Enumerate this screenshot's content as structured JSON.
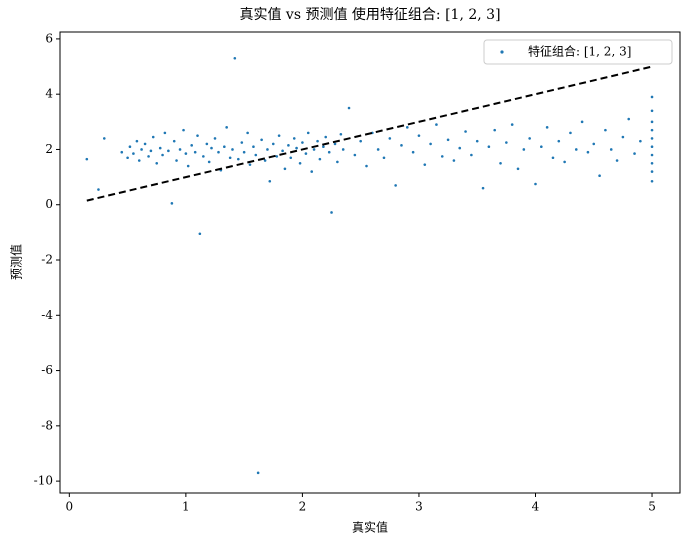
{
  "chart_data": {
    "type": "scatter",
    "title": "真实值 vs 预测值 使用特征组合: [1, 2, 3]",
    "x_label": "真实值",
    "y_label": "预测值",
    "xlim": [
      -0.08,
      5.24
    ],
    "ylim": [
      -10.43,
      6.25
    ],
    "xticks": [
      0,
      1,
      2,
      3,
      4,
      5
    ],
    "yticks": [
      -10,
      -8,
      -6,
      -4,
      -2,
      0,
      2,
      4,
      6
    ],
    "legend": "upper right",
    "grid": false,
    "reference_line": {
      "x": [
        0.15,
        5
      ],
      "y": [
        0.15,
        5
      ],
      "color": "#000000",
      "dashed": true
    },
    "series": [
      {
        "name": "特征组合: [1, 2, 3]",
        "color": "#1f77b4",
        "x": [
          0.15,
          0.25,
          0.3,
          0.45,
          0.5,
          0.52,
          0.55,
          0.58,
          0.6,
          0.62,
          0.65,
          0.68,
          0.7,
          0.72,
          0.75,
          0.78,
          0.8,
          0.82,
          0.85,
          0.88,
          0.9,
          0.92,
          0.95,
          0.98,
          1.0,
          1.02,
          1.05,
          1.08,
          1.1,
          1.12,
          1.15,
          1.18,
          1.2,
          1.22,
          1.25,
          1.28,
          1.3,
          1.33,
          1.35,
          1.38,
          1.4,
          1.42,
          1.45,
          1.48,
          1.5,
          1.53,
          1.55,
          1.58,
          1.6,
          1.62,
          1.65,
          1.68,
          1.7,
          1.72,
          1.75,
          1.78,
          1.8,
          1.83,
          1.85,
          1.88,
          1.9,
          1.93,
          1.95,
          1.98,
          2.0,
          2.03,
          2.05,
          2.08,
          2.1,
          2.13,
          2.15,
          2.18,
          2.2,
          2.23,
          2.25,
          2.28,
          2.3,
          2.33,
          2.35,
          2.4,
          2.45,
          2.5,
          2.55,
          2.6,
          2.65,
          2.7,
          2.75,
          2.8,
          2.85,
          2.9,
          2.95,
          3.0,
          3.05,
          3.1,
          3.15,
          3.2,
          3.25,
          3.3,
          3.35,
          3.4,
          3.45,
          3.5,
          3.55,
          3.6,
          3.65,
          3.7,
          3.75,
          3.8,
          3.85,
          3.9,
          3.95,
          4.0,
          4.05,
          4.1,
          4.15,
          4.2,
          4.25,
          4.3,
          4.35,
          4.4,
          4.45,
          4.5,
          4.55,
          4.6,
          4.65,
          4.7,
          4.75,
          4.8,
          4.85,
          4.9,
          5,
          5,
          5,
          5,
          5,
          5,
          5,
          5,
          5,
          5
        ],
        "y": [
          1.65,
          0.55,
          2.4,
          1.9,
          1.7,
          2.1,
          1.85,
          2.3,
          1.6,
          2.0,
          2.2,
          1.75,
          1.95,
          2.45,
          1.5,
          2.05,
          1.8,
          2.6,
          1.95,
          0.05,
          2.3,
          1.6,
          2.0,
          2.7,
          1.85,
          1.4,
          2.15,
          1.9,
          2.5,
          -1.05,
          1.75,
          2.2,
          1.55,
          2.05,
          2.4,
          1.9,
          1.25,
          2.1,
          2.8,
          1.7,
          2.0,
          5.3,
          1.65,
          2.25,
          1.9,
          2.6,
          1.45,
          2.1,
          1.8,
          -9.7,
          2.35,
          1.6,
          2.0,
          0.85,
          2.2,
          1.75,
          2.5,
          1.95,
          1.3,
          2.15,
          1.7,
          2.4,
          2.05,
          1.5,
          2.25,
          1.85,
          2.6,
          1.2,
          2.0,
          2.3,
          1.65,
          2.1,
          2.45,
          1.9,
          -0.28,
          2.2,
          1.55,
          2.55,
          2.0,
          3.5,
          1.8,
          2.3,
          1.4,
          2.6,
          2.0,
          1.7,
          2.4,
          0.7,
          2.15,
          2.8,
          1.9,
          2.5,
          1.45,
          2.2,
          2.9,
          1.75,
          2.35,
          1.6,
          2.05,
          2.65,
          1.8,
          2.3,
          0.6,
          2.1,
          2.7,
          1.5,
          2.25,
          2.9,
          1.3,
          2.0,
          2.4,
          0.75,
          2.1,
          2.8,
          1.7,
          2.3,
          1.55,
          2.6,
          2.0,
          3.0,
          1.9,
          2.2,
          1.05,
          2.7,
          2.0,
          1.6,
          2.45,
          3.1,
          1.85,
          2.3,
          0.85,
          1.2,
          1.5,
          1.8,
          2.1,
          2.4,
          2.7,
          3.0,
          3.4,
          3.9
        ]
      }
    ]
  }
}
